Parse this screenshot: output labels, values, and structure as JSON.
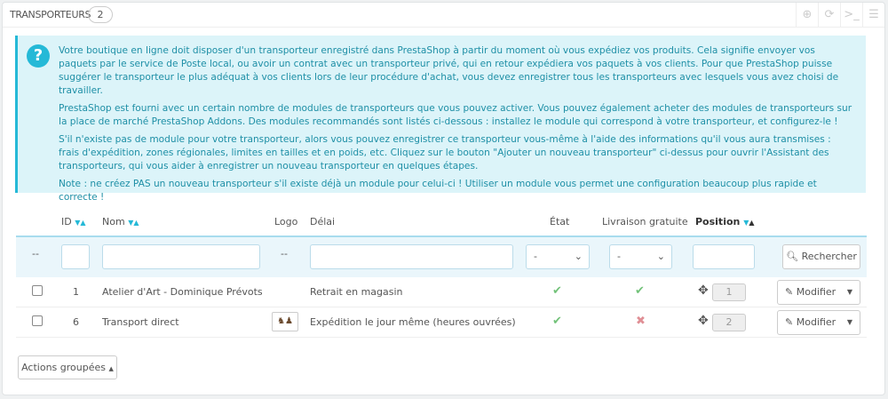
{
  "header": {
    "title": "TRANSPORTEURS",
    "count": "2",
    "tools": [
      "add-icon",
      "refresh-icon",
      "sql-terminal-icon",
      "database-icon"
    ]
  },
  "info": {
    "paragraphs": [
      "Votre boutique en ligne doit disposer d'un transporteur enregistré dans PrestaShop à partir du moment où vous expédiez vos produits. Cela signifie envoyer vos paquets par le service de Poste local, ou avoir un contrat avec un transporteur privé, qui en retour expédiera vos paquets à vos clients. Pour que PrestaShop puisse suggérer le transporteur le plus adéquat à vos clients lors de leur procédure d'achat, vous devez enregistrer tous les transporteurs avec lesquels vous avez choisi de travailler.",
      "PrestaShop est fourni avec un certain nombre de modules de transporteurs que vous pouvez activer. Vous pouvez également acheter des modules de transporteurs sur la place de marché PrestaShop Addons. Des modules recommandés sont listés ci-dessous : installez le module qui correspond à votre transporteur, et configurez-le !",
      "S'il n'existe pas de module pour votre transporteur, alors vous pouvez enregistrer ce transporteur vous-même à l'aide des informations qu'il vous aura transmises : frais d'expédition, zones régionales, limites en tailles et en poids, etc. Cliquez sur le bouton \"Ajouter un nouveau transporteur\" ci-dessus pour ouvrir l'Assistant des transporteurs, qui vous aider à enregistrer un nouveau transporteur en quelques étapes.",
      "Note : ne créez PAS un nouveau transporteur s'il existe déjà un module pour celui-ci ! Utiliser un module vous permet une configuration beaucoup plus rapide et correcte !"
    ]
  },
  "table": {
    "columns": {
      "id": "ID",
      "name": "Nom",
      "logo": "Logo",
      "delay": "Délai",
      "status": "État",
      "free": "Livraison gratuite",
      "position": "Position"
    },
    "filters": {
      "dash": "--",
      "logo_dash": "--",
      "status_value": "-",
      "free_value": "-",
      "search_label": "Rechercher"
    },
    "rows": [
      {
        "id": "1",
        "name": "Atelier d'Art - Dominique Prévots",
        "logo": false,
        "delay": "Retrait en magasin",
        "status": true,
        "free": true,
        "position": "1",
        "action": "Modifier"
      },
      {
        "id": "6",
        "name": "Transport direct",
        "logo": true,
        "delay": "Expédition le jour même (heures ouvrées)",
        "status": true,
        "free": false,
        "position": "2",
        "action": "Modifier"
      }
    ]
  },
  "bulk": {
    "label": "Actions groupées"
  }
}
